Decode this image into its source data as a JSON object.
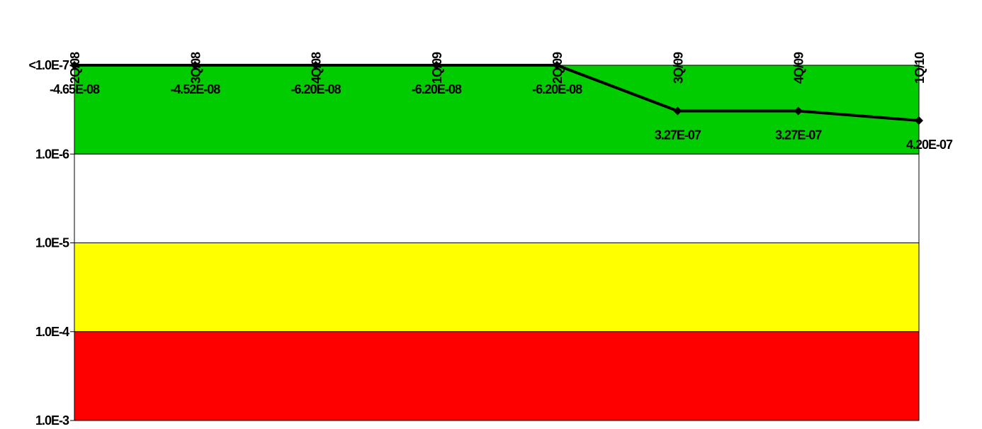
{
  "chart_data": {
    "type": "line",
    "title": "",
    "xlabel": "",
    "ylabel": "",
    "y_scale": "log",
    "y_inverted": true,
    "ylim": [
      1e-07,
      0.001
    ],
    "grid": false,
    "legend": "none",
    "categories": [
      "2Q/08",
      "3Q/08",
      "4Q/08",
      "1Q/09",
      "2Q/09",
      "3Q/09",
      "4Q/09",
      "1Q/10"
    ],
    "y_ticks": [
      {
        "value": 1e-07,
        "label": "<1.0E-7"
      },
      {
        "value": 1e-06,
        "label": "1.0E-6"
      },
      {
        "value": 1e-05,
        "label": "1.0E-5"
      },
      {
        "value": 0.0001,
        "label": "1.0E-4"
      },
      {
        "value": 0.001,
        "label": "1.0E-3"
      }
    ],
    "bands": [
      {
        "from": 1e-07,
        "to": 1e-06,
        "color": "#00cc00"
      },
      {
        "from": 1e-06,
        "to": 1e-05,
        "color": "#ffffff"
      },
      {
        "from": 1e-05,
        "to": 0.0001,
        "color": "#ffff00"
      },
      {
        "from": 0.0001,
        "to": 0.001,
        "color": "#ff0000"
      }
    ],
    "series": [
      {
        "values": [
          1e-07,
          1e-07,
          1e-07,
          1e-07,
          1e-07,
          3.27e-07,
          3.27e-07,
          4.2e-07
        ],
        "labels": [
          "-4.65E-08",
          "-4.52E-08",
          "-6.20E-08",
          "-6.20E-08",
          "-6.20E-08",
          "3.27E-07",
          "3.27E-07",
          "4.20E-07"
        ],
        "color": "#000000"
      }
    ]
  }
}
